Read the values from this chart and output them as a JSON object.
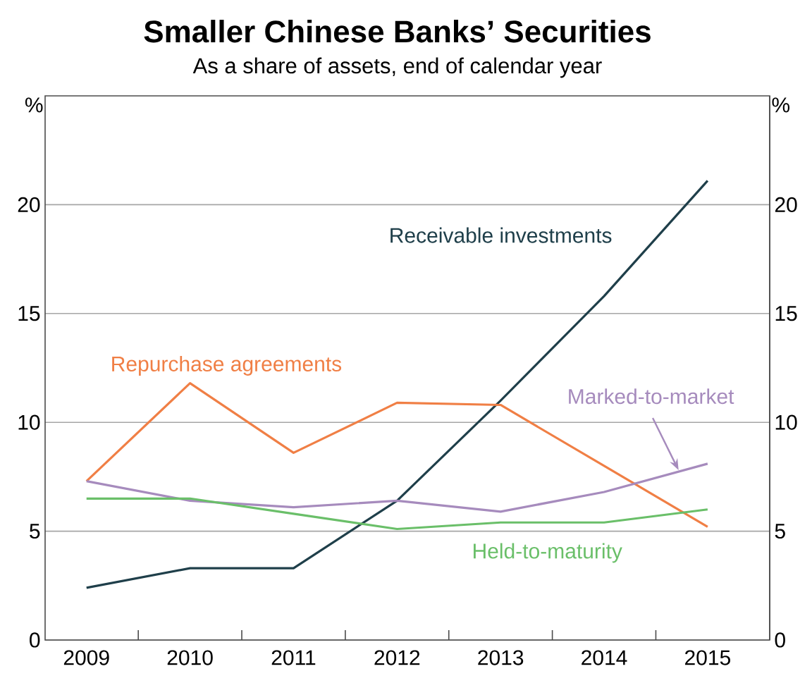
{
  "chart_data": {
    "type": "line",
    "title": "Smaller Chinese Banks’ Securities",
    "subtitle": "As a share of assets, end of calendar year",
    "ylabel": "%",
    "y2label": "%",
    "categories": [
      "2009",
      "2010",
      "2011",
      "2012",
      "2013",
      "2014",
      "2015"
    ],
    "series": [
      {
        "name": "Receivable investments",
        "color": "#1f3f4a",
        "values": [
          2.4,
          3.3,
          3.3,
          6.4,
          11.0,
          15.8,
          21.1
        ]
      },
      {
        "name": "Repurchase agreements",
        "color": "#f07f45",
        "values": [
          7.3,
          11.8,
          8.6,
          10.9,
          10.8,
          8.0,
          5.2
        ]
      },
      {
        "name": "Marked-to-market",
        "color": "#a68bbd",
        "values": [
          7.3,
          6.4,
          6.1,
          6.4,
          5.9,
          6.8,
          8.1
        ]
      },
      {
        "name": "Held-to-maturity",
        "color": "#6abf69",
        "values": [
          6.5,
          6.5,
          5.8,
          5.1,
          5.4,
          5.4,
          6.0
        ]
      }
    ],
    "ylim": [
      0,
      25
    ],
    "yticks": [
      0,
      5,
      10,
      15,
      20
    ],
    "y2lim": [
      0,
      25
    ],
    "y2ticks": [
      0,
      5,
      10,
      15,
      20
    ],
    "grid": "y"
  }
}
